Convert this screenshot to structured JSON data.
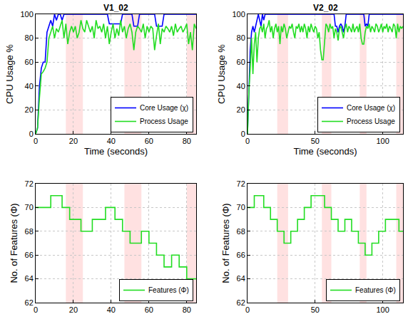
{
  "chart_data": [
    {
      "type": "line",
      "title": "V1_02",
      "x_label": "Time (seconds)",
      "y_label": "CPU Usage %",
      "xlim": [
        0,
        85
      ],
      "xticks": [
        0,
        20,
        40,
        60,
        80
      ],
      "ylim": [
        0,
        100
      ],
      "yticks": [
        0,
        20,
        40,
        60,
        80,
        100
      ],
      "grid": true,
      "legend": "lower right",
      "shaded_regions": [
        [
          16,
          25
        ],
        [
          47,
          56
        ],
        [
          80,
          85
        ]
      ],
      "x": [
        0,
        1,
        2,
        3,
        4,
        5,
        6,
        7,
        8,
        9,
        10,
        11,
        12,
        13,
        14,
        15,
        16,
        17,
        18,
        19,
        20,
        21,
        22,
        23,
        24,
        25,
        26,
        27,
        28,
        29,
        30,
        31,
        32,
        33,
        34,
        35,
        36,
        37,
        38,
        39,
        40,
        41,
        42,
        43,
        44,
        45,
        46,
        47,
        48,
        49,
        50,
        51,
        52,
        53,
        54,
        55,
        56,
        57,
        58,
        59,
        60,
        61,
        62,
        63,
        64,
        65,
        66,
        67,
        68,
        69,
        70,
        71,
        72,
        73,
        74,
        75,
        76,
        77,
        78,
        79,
        80,
        81,
        82,
        83,
        84,
        85
      ],
      "series": [
        {
          "name": "Core Usage (χ)",
          "color": "#0000ff",
          "line_style": "solid",
          "values": [
            0,
            5,
            40,
            55,
            60,
            60,
            85,
            90,
            95,
            90,
            100,
            95,
            100,
            100,
            95,
            100,
            100,
            100,
            100,
            100,
            100,
            100,
            100,
            100,
            100,
            100,
            100,
            100,
            100,
            100,
            100,
            100,
            100,
            100,
            100,
            100,
            100,
            100,
            100,
            92,
            92,
            92,
            92,
            92,
            92,
            92,
            100,
            100,
            100,
            100,
            100,
            100,
            90,
            90,
            90,
            100,
            100,
            100,
            100,
            100,
            100,
            100,
            100,
            100,
            90,
            90,
            90,
            90,
            100,
            100,
            100,
            100,
            100,
            100,
            100,
            100,
            100,
            100,
            100,
            100,
            100,
            100,
            100,
            100,
            100,
            100
          ]
        },
        {
          "name": "Process Usage",
          "color": "#22dd22",
          "line_style": "solid",
          "values": [
            0,
            5,
            30,
            50,
            52,
            55,
            60,
            80,
            85,
            90,
            80,
            88,
            85,
            90,
            95,
            80,
            92,
            75,
            85,
            90,
            85,
            90,
            80,
            85,
            95,
            88,
            85,
            95,
            90,
            85,
            90,
            80,
            95,
            88,
            90,
            85,
            92,
            80,
            90,
            75,
            85,
            92,
            80,
            88,
            82,
            95,
            85,
            90,
            80,
            88,
            92,
            85,
            70,
            85,
            90,
            88,
            85,
            92,
            80,
            90,
            85,
            90,
            88,
            70,
            82,
            92,
            75,
            88,
            85,
            90,
            88,
            85,
            90,
            82,
            92,
            85,
            88,
            90,
            85,
            88,
            92,
            75,
            85,
            70,
            92,
            88
          ]
        }
      ]
    },
    {
      "type": "line",
      "title": "V2_02",
      "x_label": "Time (seconds)",
      "y_label": "CPU Usage %",
      "xlim": [
        0,
        115
      ],
      "xticks": [
        0,
        50,
        100
      ],
      "ylim": [
        0,
        100
      ],
      "yticks": [
        0,
        20,
        40,
        60,
        80,
        100
      ],
      "grid": true,
      "legend": "lower right",
      "shaded_regions": [
        [
          22,
          30
        ],
        [
          55,
          62
        ],
        [
          83,
          88
        ],
        [
          110,
          115
        ]
      ],
      "x": [
        0,
        1,
        2,
        3,
        4,
        5,
        6,
        7,
        8,
        9,
        10,
        11,
        12,
        13,
        14,
        15,
        16,
        17,
        18,
        19,
        20,
        21,
        22,
        23,
        24,
        25,
        26,
        27,
        28,
        29,
        30,
        31,
        32,
        33,
        34,
        35,
        36,
        37,
        38,
        39,
        40,
        41,
        42,
        43,
        44,
        45,
        46,
        47,
        48,
        49,
        50,
        51,
        52,
        53,
        54,
        55,
        56,
        57,
        58,
        59,
        60,
        61,
        62,
        63,
        64,
        65,
        66,
        67,
        68,
        69,
        70,
        71,
        72,
        73,
        74,
        75,
        76,
        77,
        78,
        79,
        80,
        81,
        82,
        83,
        84,
        85,
        86,
        87,
        88,
        89,
        90,
        91,
        92,
        93,
        94,
        95,
        96,
        97,
        98,
        99,
        100,
        101,
        102,
        103,
        104,
        105,
        106,
        107,
        108,
        109,
        110,
        111,
        112,
        113,
        114,
        115
      ],
      "series": [
        {
          "name": "Core Usage (χ)",
          "color": "#0000ff",
          "line_style": "solid",
          "values": [
            0,
            40,
            70,
            85,
            90,
            85,
            90,
            95,
            100,
            95,
            90,
            100,
            95,
            100,
            100,
            100,
            100,
            100,
            100,
            100,
            100,
            100,
            100,
            100,
            100,
            100,
            100,
            100,
            100,
            100,
            100,
            100,
            100,
            100,
            100,
            100,
            100,
            100,
            100,
            100,
            100,
            100,
            100,
            100,
            100,
            100,
            100,
            100,
            100,
            100,
            100,
            100,
            100,
            100,
            100,
            100,
            100,
            100,
            100,
            100,
            100,
            100,
            100,
            100,
            100,
            90,
            90,
            85,
            90,
            92,
            90,
            85,
            90,
            100,
            100,
            100,
            100,
            100,
            100,
            100,
            100,
            100,
            100,
            100,
            100,
            100,
            100,
            90,
            92,
            90,
            100,
            100,
            100,
            100,
            100,
            100,
            100,
            100,
            100,
            100,
            100,
            100,
            100,
            100,
            100,
            100,
            100,
            100,
            100,
            100,
            100,
            100,
            100,
            100,
            100,
            100
          ]
        },
        {
          "name": "Process Usage",
          "color": "#22dd22",
          "line_style": "solid",
          "values": [
            0,
            35,
            55,
            80,
            50,
            75,
            85,
            60,
            80,
            88,
            90,
            85,
            92,
            80,
            88,
            90,
            95,
            85,
            90,
            80,
            88,
            92,
            85,
            90,
            75,
            90,
            85,
            92,
            88,
            80,
            85,
            90,
            88,
            92,
            85,
            80,
            90,
            88,
            92,
            85,
            90,
            85,
            92,
            88,
            80,
            90,
            85,
            92,
            88,
            85,
            90,
            88,
            80,
            85,
            70,
            62,
            62,
            75,
            92,
            90,
            85,
            92,
            88,
            90,
            80,
            88,
            85,
            78,
            88,
            90,
            85,
            80,
            88,
            92,
            85,
            90,
            88,
            85,
            92,
            85,
            88,
            90,
            85,
            92,
            80,
            75,
            75,
            85,
            90,
            88,
            92,
            85,
            90,
            88,
            85,
            92,
            90,
            85,
            88,
            92,
            85,
            90,
            88,
            92,
            85,
            90,
            88,
            85,
            92,
            90,
            80,
            92,
            85,
            90,
            88,
            90
          ]
        }
      ]
    },
    {
      "type": "line",
      "y_label": "No. of Features (Φ)",
      "xlim": [
        0,
        85
      ],
      "xticks": [
        0,
        20,
        40,
        60,
        80
      ],
      "ylim": [
        62,
        72
      ],
      "yticks": [
        62,
        64,
        66,
        68,
        70,
        72
      ],
      "grid": true,
      "legend": "lower right",
      "shaded_regions": [
        [
          16,
          25
        ],
        [
          47,
          56
        ],
        [
          80,
          85
        ]
      ],
      "x": [
        0,
        8,
        14,
        18,
        24,
        30,
        37,
        42,
        46,
        50,
        56,
        60,
        64,
        68,
        72,
        76,
        80,
        85
      ],
      "series": [
        {
          "name": "Features (Φ)",
          "color": "#22dd22",
          "line_style": "step",
          "values": [
            70,
            71,
            70,
            69,
            68,
            69,
            70,
            69,
            68,
            67,
            68,
            67,
            66,
            65,
            66,
            65,
            64,
            64
          ]
        }
      ]
    },
    {
      "type": "line",
      "y_label": "No. of Features (Φ)",
      "xlim": [
        0,
        115
      ],
      "xticks": [
        0,
        50,
        100
      ],
      "ylim": [
        62,
        72
      ],
      "yticks": [
        62,
        64,
        66,
        68,
        70,
        72
      ],
      "grid": true,
      "legend": "lower right",
      "shaded_regions": [
        [
          22,
          30
        ],
        [
          55,
          62
        ],
        [
          83,
          88
        ],
        [
          110,
          115
        ]
      ],
      "x": [
        0,
        5,
        12,
        17,
        22,
        27,
        32,
        37,
        42,
        47,
        57,
        62,
        67,
        72,
        77,
        82,
        87,
        92,
        97,
        102,
        112,
        115
      ],
      "series": [
        {
          "name": "Features (Φ)",
          "color": "#22dd22",
          "line_style": "step",
          "values": [
            70,
            71,
            70,
            69,
            68,
            67,
            68,
            69,
            70,
            71,
            70,
            69,
            68,
            69,
            68,
            67,
            66,
            67,
            68,
            69,
            68,
            68
          ]
        }
      ]
    }
  ]
}
